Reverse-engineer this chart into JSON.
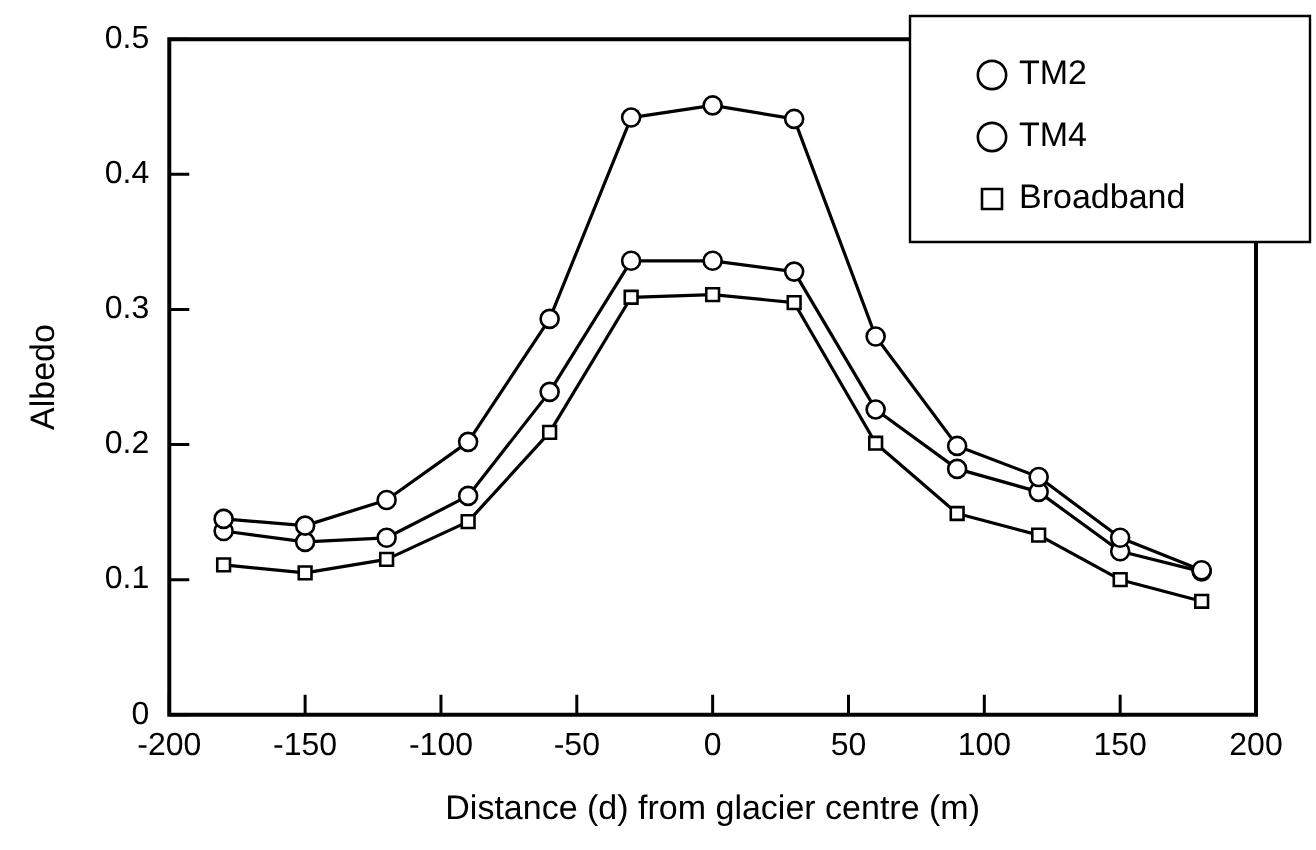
{
  "chart_data": {
    "type": "line",
    "xlabel": "Distance (d) from glacier centre (m)",
    "ylabel": "Albedo",
    "x": [
      -180,
      -150,
      -120,
      -90,
      -60,
      -30,
      0,
      30,
      60,
      90,
      120,
      150,
      180
    ],
    "xlim": [
      -200,
      200
    ],
    "xticks": [
      -200,
      -150,
      -100,
      -50,
      0,
      50,
      100,
      150,
      200
    ],
    "ylim": [
      0,
      0.5
    ],
    "yticks": [
      0,
      0.1,
      0.2,
      0.3,
      0.4,
      0.5
    ],
    "grid": false,
    "legend": "top right",
    "line_style": "solid",
    "series": [
      {
        "name": "TM2",
        "color": "#000000",
        "marker": "circle",
        "values": [
          0.145,
          0.14,
          0.159,
          0.202,
          0.293,
          0.442,
          0.451,
          0.441,
          0.28,
          0.199,
          0.176,
          0.131,
          0.107
        ]
      },
      {
        "name": "TM4",
        "color": "#000000",
        "marker": "circle",
        "values": [
          0.136,
          0.128,
          0.131,
          0.162,
          0.239,
          0.336,
          0.336,
          0.328,
          0.226,
          0.182,
          0.165,
          0.121,
          0.106
        ]
      },
      {
        "name": "Broadband",
        "color": "#000000",
        "marker": "square",
        "values": [
          0.111,
          0.105,
          0.115,
          0.143,
          0.209,
          0.309,
          0.311,
          0.305,
          0.201,
          0.149,
          0.133,
          0.1,
          0.084
        ]
      }
    ]
  }
}
